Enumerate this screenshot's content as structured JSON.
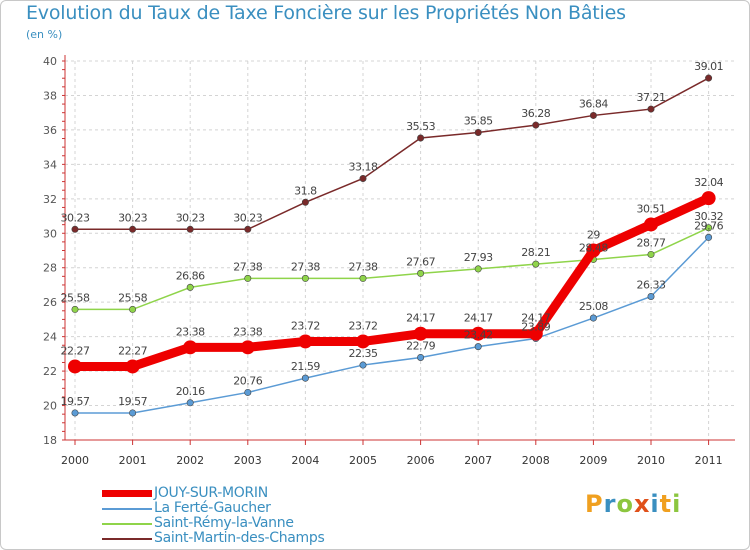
{
  "title": "Evolution du Taux de Taxe Foncière sur les Propriétés Non Bâties",
  "unit": "(en %)",
  "logo": {
    "letters": [
      "P",
      "r",
      "o",
      "x",
      "i",
      "t",
      "i"
    ],
    "colors": [
      "#f0a020",
      "#3a8fc0",
      "#8cc63f",
      "#e0501a",
      "#3a8fc0",
      "#f0a020",
      "#8cc63f"
    ]
  },
  "chart_data": {
    "type": "line",
    "title": "Evolution du Taux de Taxe Foncière sur les Propriétés Non Bâties",
    "ylabel": "(en %)",
    "x": [
      "2000",
      "2001",
      "2002",
      "2003",
      "2004",
      "2005",
      "2006",
      "2007",
      "2008",
      "2009",
      "2010",
      "2011"
    ],
    "ylim": [
      18,
      40
    ],
    "yticks": [
      18,
      20,
      22,
      24,
      26,
      28,
      30,
      32,
      34,
      36,
      38,
      40
    ],
    "grid": true,
    "legend_position": "bottom-left",
    "series": [
      {
        "name": "JOUY-SUR-MORIN",
        "color": "#ee0000",
        "emphasis": true,
        "values": [
          22.27,
          22.27,
          23.38,
          23.38,
          23.72,
          23.72,
          24.17,
          24.17,
          24.17,
          29,
          30.51,
          32.04
        ],
        "labels": [
          "22.27",
          "22.27",
          "23.38",
          "23.38",
          "23.72",
          "23.72",
          "24.17",
          "24.17",
          "24.17",
          "29",
          "30.51",
          "32.04"
        ]
      },
      {
        "name": "La Ferté-Gaucher",
        "color": "#5b9bd5",
        "values": [
          19.57,
          19.57,
          20.16,
          20.76,
          21.59,
          22.35,
          22.79,
          23.42,
          23.89,
          25.08,
          26.33,
          29.76
        ],
        "labels": [
          "19.57",
          "19.57",
          "20.16",
          "20.76",
          "21.59",
          "22.35",
          "22.79",
          "23.42",
          "23.89",
          "25.08",
          "26.33",
          "29.76"
        ]
      },
      {
        "name": "Saint-Rémy-la-Vanne",
        "color": "#8fd44a",
        "values": [
          25.58,
          25.58,
          26.86,
          27.38,
          27.38,
          27.38,
          27.67,
          27.93,
          28.21,
          28.48,
          28.77,
          30.32
        ],
        "labels": [
          "25.58",
          "25.58",
          "26.86",
          "27.38",
          "27.38",
          "27.38",
          "27.67",
          "27.93",
          "28.21",
          "28.48",
          "28.77",
          "30.32"
        ]
      },
      {
        "name": "Saint-Martin-des-Champs",
        "color": "#7a2a2a",
        "values": [
          30.23,
          30.23,
          30.23,
          30.23,
          31.8,
          33.18,
          35.53,
          35.85,
          36.28,
          36.84,
          37.21,
          39.01
        ],
        "labels": [
          "30.23",
          "30.23",
          "30.23",
          "30.23",
          "31.8",
          "33.18",
          "35.53",
          "35.85",
          "36.28",
          "36.84",
          "37.21",
          "39.01"
        ]
      }
    ]
  }
}
